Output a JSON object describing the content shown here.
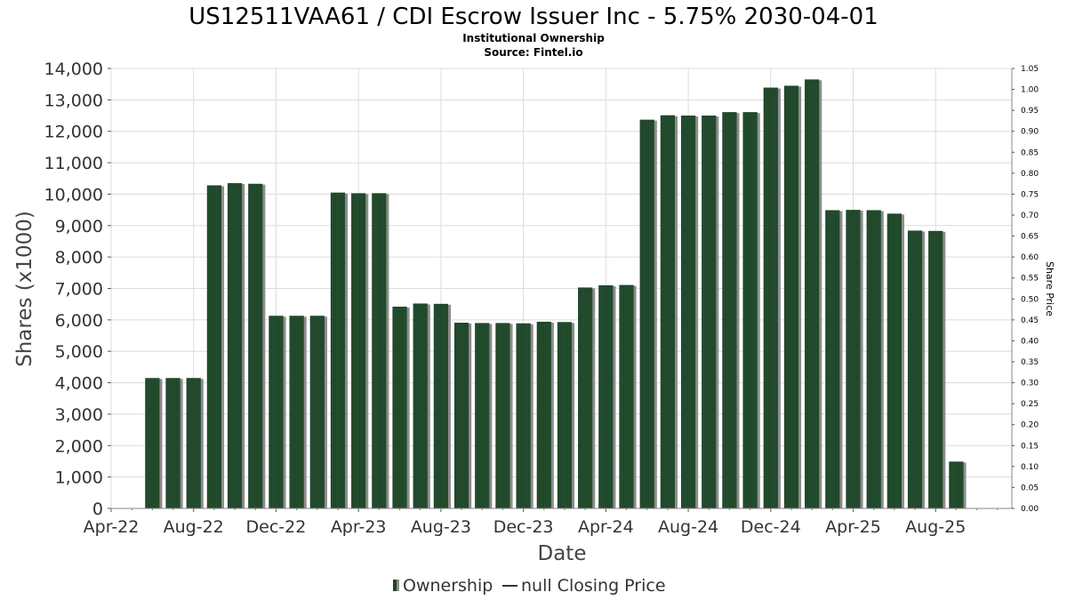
{
  "chart_data": {
    "type": "bar",
    "title": "US12511VAA61 / CDI Escrow Issuer Inc - 5.75% 2030-04-01",
    "subtitle_lines": [
      "Institutional Ownership",
      "Source: Fintel.io"
    ],
    "xlabel": "Date",
    "ylabel": "Shares (x1000)",
    "y2label": "Share Price",
    "ylim": [
      0,
      14000
    ],
    "y2lim": [
      0,
      1.05
    ],
    "yticks": [
      "0",
      "1,000",
      "2,000",
      "3,000",
      "4,000",
      "5,000",
      "6,000",
      "7,000",
      "8,000",
      "9,000",
      "10,000",
      "11,000",
      "12,000",
      "13,000",
      "14,000"
    ],
    "y2ticks": [
      "0.00",
      "0.05",
      "0.10",
      "0.15",
      "0.20",
      "0.25",
      "0.30",
      "0.35",
      "0.40",
      "0.45",
      "0.50",
      "0.55",
      "0.60",
      "0.65",
      "0.70",
      "0.75",
      "0.80",
      "0.85",
      "0.90",
      "0.95",
      "1.00",
      "1.05"
    ],
    "xticks": [
      {
        "label": "Apr-22",
        "month": 0
      },
      {
        "label": "Aug-22",
        "month": 4
      },
      {
        "label": "Dec-22",
        "month": 8
      },
      {
        "label": "Apr-23",
        "month": 12
      },
      {
        "label": "Aug-23",
        "month": 16
      },
      {
        "label": "Dec-23",
        "month": 20
      },
      {
        "label": "Apr-24",
        "month": 24
      },
      {
        "label": "Aug-24",
        "month": 28
      },
      {
        "label": "Dec-24",
        "month": 32
      },
      {
        "label": "Apr-25",
        "month": 36
      },
      {
        "label": "Aug-25",
        "month": 40
      }
    ],
    "x_range_months": [
      0,
      43.7
    ],
    "series": [
      {
        "name": "Ownership",
        "color": "#1e4428",
        "points": [
          {
            "month": 2,
            "value": 4150
          },
          {
            "month": 3,
            "value": 4150
          },
          {
            "month": 4,
            "value": 4150
          },
          {
            "month": 5,
            "value": 10280
          },
          {
            "month": 6,
            "value": 10350
          },
          {
            "month": 7,
            "value": 10330
          },
          {
            "month": 8,
            "value": 6130
          },
          {
            "month": 9,
            "value": 6130
          },
          {
            "month": 10,
            "value": 6130
          },
          {
            "month": 11,
            "value": 10050
          },
          {
            "month": 12,
            "value": 10030
          },
          {
            "month": 13,
            "value": 10030
          },
          {
            "month": 14,
            "value": 6420
          },
          {
            "month": 15,
            "value": 6520
          },
          {
            "month": 16,
            "value": 6510
          },
          {
            "month": 17,
            "value": 5910
          },
          {
            "month": 18,
            "value": 5900
          },
          {
            "month": 19,
            "value": 5900
          },
          {
            "month": 20,
            "value": 5890
          },
          {
            "month": 21,
            "value": 5940
          },
          {
            "month": 22,
            "value": 5930
          },
          {
            "month": 23,
            "value": 7030
          },
          {
            "month": 24,
            "value": 7100
          },
          {
            "month": 25,
            "value": 7110
          },
          {
            "month": 26,
            "value": 12370
          },
          {
            "month": 27,
            "value": 12510
          },
          {
            "month": 28,
            "value": 12500
          },
          {
            "month": 29,
            "value": 12500
          },
          {
            "month": 30,
            "value": 12610
          },
          {
            "month": 31,
            "value": 12610
          },
          {
            "month": 32,
            "value": 13390
          },
          {
            "month": 33,
            "value": 13450
          },
          {
            "month": 34,
            "value": 13650
          },
          {
            "month": 35,
            "value": 9490
          },
          {
            "month": 36,
            "value": 9500
          },
          {
            "month": 37,
            "value": 9490
          },
          {
            "month": 38,
            "value": 9380
          },
          {
            "month": 39,
            "value": 8840
          },
          {
            "month": 40,
            "value": 8830
          },
          {
            "month": 41,
            "value": 1490
          }
        ]
      }
    ],
    "legend": {
      "placement": "bottom",
      "items": [
        {
          "label": "Ownership",
          "marker": "bar",
          "color": "#1e4428"
        },
        {
          "label": "null Closing Price",
          "marker": "line",
          "color": "#333333"
        }
      ]
    },
    "grid": true
  }
}
